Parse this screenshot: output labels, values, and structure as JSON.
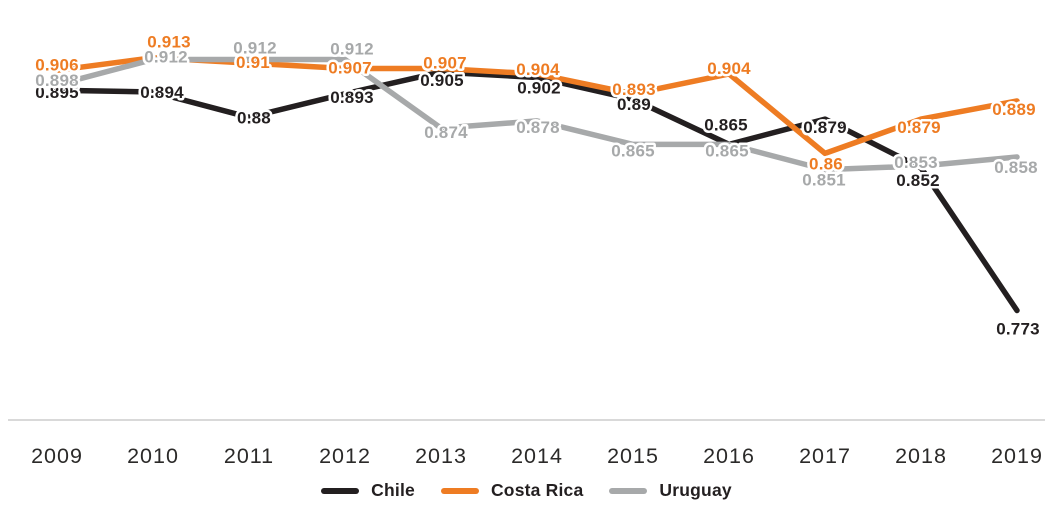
{
  "chart_data": {
    "type": "line",
    "title": "",
    "xlabel": "",
    "ylabel": "",
    "categories": [
      "2009",
      "2010",
      "2011",
      "2012",
      "2013",
      "2014",
      "2015",
      "2016",
      "2017",
      "2018",
      "2019"
    ],
    "series": [
      {
        "name": "Chile",
        "color": "#231f20",
        "values": [
          0.895,
          0.894,
          0.88,
          0.893,
          0.905,
          0.902,
          0.89,
          0.865,
          0.879,
          0.852,
          0.773
        ],
        "label_offsets": [
          [
            0,
            2
          ],
          [
            9,
            0
          ],
          [
            5,
            0
          ],
          [
            7,
            3
          ],
          [
            1,
            8
          ],
          [
            2,
            10
          ],
          [
            1,
            5
          ],
          [
            -3,
            -20
          ],
          [
            0,
            8
          ],
          [
            -3,
            12
          ],
          [
            1,
            18
          ]
        ]
      },
      {
        "name": "Costa Rica",
        "color": "#ee7c23",
        "values": [
          0.906,
          0.913,
          0.91,
          0.907,
          0.907,
          0.904,
          0.893,
          0.904,
          0.86,
          0.879,
          0.889
        ],
        "label_offsets": [
          [
            0,
            -6
          ],
          [
            16,
            -16
          ],
          [
            4,
            -1
          ],
          [
            5,
            -1
          ],
          [
            4,
            -6
          ],
          [
            1,
            -5
          ],
          [
            1,
            -5
          ],
          [
            0,
            -6
          ],
          [
            1,
            10
          ],
          [
            -2,
            8
          ],
          [
            -3,
            8
          ]
        ]
      },
      {
        "name": "Uruguay",
        "color": "#a7a9aa",
        "values": [
          0.898,
          0.912,
          0.912,
          0.912,
          0.874,
          0.878,
          0.865,
          0.865,
          0.851,
          0.853,
          0.858
        ],
        "label_offsets": [
          [
            0,
            -5
          ],
          [
            13,
            -3
          ],
          [
            6,
            -12
          ],
          [
            7,
            -11
          ],
          [
            5,
            4
          ],
          [
            1,
            6
          ],
          [
            0,
            6
          ],
          [
            -2,
            6
          ],
          [
            -1,
            10
          ],
          [
            -5,
            -4
          ],
          [
            -1,
            10
          ]
        ]
      }
    ],
    "ylim": [
      0.76,
      0.925
    ],
    "grid": false,
    "value_labels": true,
    "legend_position": "bottom"
  },
  "legend": {
    "items": [
      {
        "label": "Chile",
        "color": "#231f20"
      },
      {
        "label": "Costa Rica",
        "color": "#ee7c23"
      },
      {
        "label": "Uruguay",
        "color": "#a7a9aa"
      }
    ]
  },
  "colors": {
    "axis_line": "#d9d9d9",
    "axis_text": "#2b2a29",
    "background": "#ffffff"
  }
}
